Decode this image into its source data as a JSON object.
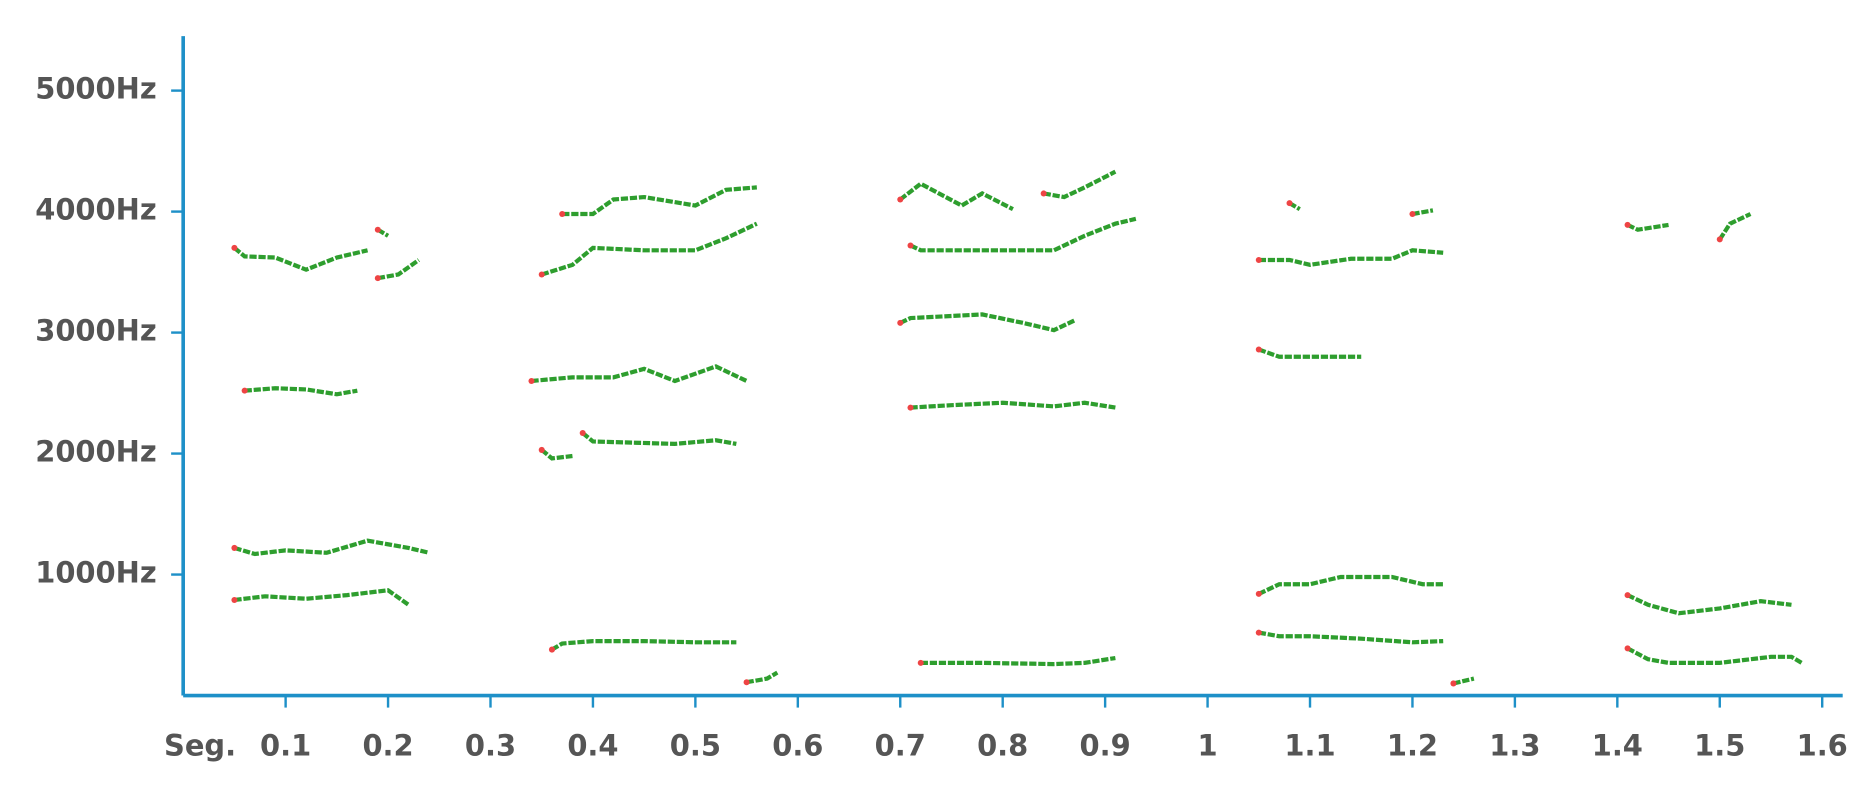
{
  "chart_data": {
    "type": "line",
    "x_label": "Seg.",
    "xlim": [
      0,
      1.62
    ],
    "ylim": [
      0,
      5450
    ],
    "xticks": [
      0.1,
      0.2,
      0.3,
      0.4,
      0.5,
      0.6,
      0.7,
      0.8,
      0.9,
      1,
      1.1,
      1.2,
      1.3,
      1.4,
      1.5,
      1.6
    ],
    "yticks": [
      {
        "value": 1000,
        "label": "1000Hz"
      },
      {
        "value": 2000,
        "label": "2000Hz"
      },
      {
        "value": 3000,
        "label": "3000Hz"
      },
      {
        "value": 4000,
        "label": "4000Hz"
      },
      {
        "value": 5000,
        "label": "5000Hz"
      }
    ],
    "axis_color": "#1e90c8",
    "start_color": "#ee4444",
    "series": [
      {
        "color": "#2e9e2e",
        "x": [
          0.05,
          0.06,
          0.09,
          0.12,
          0.15,
          0.18
        ],
        "values": [
          3700,
          3630,
          3620,
          3520,
          3620,
          3680
        ]
      },
      {
        "color": "#2e9e2e",
        "x": [
          0.19,
          0.2
        ],
        "values": [
          3850,
          3800
        ]
      },
      {
        "color": "#2e9e2e",
        "x": [
          0.19,
          0.21,
          0.23
        ],
        "values": [
          3450,
          3480,
          3600
        ]
      },
      {
        "color": "#2e9e2e",
        "x": [
          0.06,
          0.09,
          0.12,
          0.15,
          0.17
        ],
        "values": [
          2520,
          2540,
          2530,
          2490,
          2520
        ]
      },
      {
        "color": "#2e9e2e",
        "x": [
          0.05,
          0.07,
          0.1,
          0.14,
          0.18,
          0.22,
          0.24
        ],
        "values": [
          1220,
          1170,
          1200,
          1180,
          1280,
          1220,
          1180
        ]
      },
      {
        "color": "#2e9e2e",
        "x": [
          0.05,
          0.08,
          0.12,
          0.16,
          0.2,
          0.22
        ],
        "values": [
          790,
          820,
          800,
          830,
          870,
          750
        ]
      },
      {
        "color": "#2e9e2e",
        "x": [
          0.37,
          0.4,
          0.42,
          0.45,
          0.5,
          0.53,
          0.56
        ],
        "values": [
          3980,
          3980,
          4100,
          4120,
          4050,
          4180,
          4200
        ]
      },
      {
        "color": "#2e9e2e",
        "x": [
          0.35,
          0.38,
          0.4,
          0.45,
          0.5,
          0.53,
          0.56
        ],
        "values": [
          3480,
          3560,
          3700,
          3680,
          3680,
          3780,
          3900
        ]
      },
      {
        "color": "#2e9e2e",
        "x": [
          0.34,
          0.38,
          0.42,
          0.45,
          0.48,
          0.52,
          0.55
        ],
        "values": [
          2600,
          2630,
          2630,
          2700,
          2600,
          2720,
          2600
        ]
      },
      {
        "color": "#2e9e2e",
        "x": [
          0.35,
          0.36,
          0.38
        ],
        "values": [
          2030,
          1960,
          1980
        ]
      },
      {
        "color": "#2e9e2e",
        "x": [
          0.39,
          0.4,
          0.44,
          0.48,
          0.52,
          0.54
        ],
        "values": [
          2170,
          2100,
          2090,
          2080,
          2110,
          2080
        ]
      },
      {
        "color": "#2e9e2e",
        "x": [
          0.36,
          0.37,
          0.4,
          0.45,
          0.5,
          0.54
        ],
        "values": [
          380,
          430,
          450,
          450,
          440,
          440
        ]
      },
      {
        "color": "#2e9e2e",
        "x": [
          0.55,
          0.57,
          0.58
        ],
        "values": [
          110,
          140,
          190
        ]
      },
      {
        "color": "#2e9e2e",
        "x": [
          0.7,
          0.72,
          0.76,
          0.78,
          0.81
        ],
        "values": [
          4100,
          4230,
          4050,
          4150,
          4020
        ]
      },
      {
        "color": "#2e9e2e",
        "x": [
          0.84,
          0.86,
          0.88,
          0.91
        ],
        "values": [
          4150,
          4120,
          4200,
          4330
        ]
      },
      {
        "color": "#2e9e2e",
        "x": [
          0.71,
          0.72,
          0.77,
          0.85,
          0.88,
          0.91,
          0.93
        ],
        "values": [
          3720,
          3680,
          3680,
          3680,
          3800,
          3900,
          3940
        ]
      },
      {
        "color": "#2e9e2e",
        "x": [
          0.7,
          0.71,
          0.78,
          0.82,
          0.85,
          0.87
        ],
        "values": [
          3080,
          3120,
          3150,
          3080,
          3020,
          3100
        ]
      },
      {
        "color": "#2e9e2e",
        "x": [
          0.71,
          0.75,
          0.8,
          0.85,
          0.88,
          0.91
        ],
        "values": [
          2380,
          2400,
          2420,
          2390,
          2420,
          2380
        ]
      },
      {
        "color": "#2e9e2e",
        "x": [
          0.72,
          0.78,
          0.85,
          0.88,
          0.91
        ],
        "values": [
          270,
          270,
          260,
          270,
          310
        ]
      },
      {
        "color": "#2e9e2e",
        "x": [
          1.08,
          1.09
        ],
        "values": [
          4070,
          4020
        ]
      },
      {
        "color": "#2e9e2e",
        "x": [
          1.2,
          1.22
        ],
        "values": [
          3980,
          4010
        ]
      },
      {
        "color": "#2e9e2e",
        "x": [
          1.05,
          1.08,
          1.1,
          1.14,
          1.18,
          1.2,
          1.23
        ],
        "values": [
          3600,
          3600,
          3560,
          3610,
          3610,
          3680,
          3660
        ]
      },
      {
        "color": "#2e9e2e",
        "x": [
          1.05,
          1.07,
          1.1,
          1.15
        ],
        "values": [
          2860,
          2800,
          2800,
          2800
        ]
      },
      {
        "color": "#2e9e2e",
        "x": [
          1.05,
          1.07,
          1.1,
          1.13,
          1.18,
          1.21,
          1.23
        ],
        "values": [
          840,
          920,
          920,
          980,
          980,
          920,
          920
        ]
      },
      {
        "color": "#2e9e2e",
        "x": [
          1.05,
          1.07,
          1.1,
          1.15,
          1.2,
          1.23
        ],
        "values": [
          520,
          490,
          490,
          470,
          440,
          450
        ]
      },
      {
        "color": "#2e9e2e",
        "x": [
          1.24,
          1.26
        ],
        "values": [
          100,
          140
        ]
      },
      {
        "color": "#2e9e2e",
        "x": [
          1.41,
          1.42,
          1.45
        ],
        "values": [
          3890,
          3850,
          3890
        ]
      },
      {
        "color": "#2e9e2e",
        "x": [
          1.5,
          1.51,
          1.53
        ],
        "values": [
          3770,
          3900,
          3980
        ]
      },
      {
        "color": "#2e9e2e",
        "x": [
          1.41,
          1.43,
          1.46,
          1.5,
          1.54,
          1.57
        ],
        "values": [
          830,
          750,
          680,
          720,
          780,
          750
        ]
      },
      {
        "color": "#2e9e2e",
        "x": [
          1.41,
          1.43,
          1.45,
          1.5,
          1.55,
          1.57,
          1.58
        ],
        "values": [
          390,
          300,
          270,
          270,
          320,
          320,
          270
        ]
      }
    ]
  }
}
